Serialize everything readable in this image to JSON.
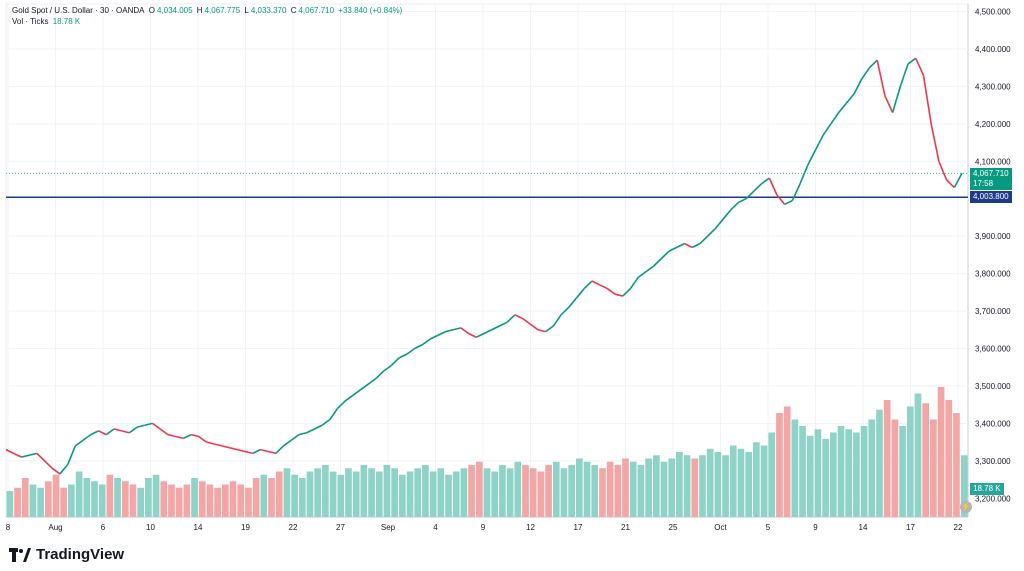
{
  "header": {
    "symbol": "Gold Spot / U.S. Dollar · 30 · OANDA",
    "open_label": "O",
    "open": "4,034.005",
    "high_label": "H",
    "high": "4,067.775",
    "low_label": "L",
    "low": "4,033.370",
    "close_label": "C",
    "close": "4,067.710",
    "change": "+33.840 (+0.84%)",
    "vol_label": "Vol · Ticks",
    "vol_value": "18.78 K"
  },
  "price_tag": {
    "value": "4,067.710",
    "countdown": "17:58"
  },
  "line_tag": {
    "value": "4,003.800"
  },
  "volume_tag": "18.78 K",
  "brand": "TradingView",
  "colors": {
    "up": "#089981",
    "down": "#f23645",
    "line": "#1e3a8a",
    "vol_up": "#8fd3c8",
    "vol_down": "#f4a6a6"
  },
  "chart_data": {
    "type": "line",
    "title": "",
    "xlabel": "",
    "ylabel": "",
    "ylim": [
      3150,
      4520
    ],
    "y_ticks": [
      3200,
      3300,
      3400,
      3500,
      3600,
      3700,
      3800,
      3900,
      4000,
      4100,
      4200,
      4300,
      4400,
      4500
    ],
    "y_tick_labels": [
      "3,200.000",
      "3,300.000",
      "3,400.000",
      "3,500.000",
      "3,600.000",
      "3,700.000",
      "3,800.000",
      "3,900.000",
      "4,000.000",
      "4,100.000",
      "4,200.000",
      "4,300.000",
      "4,400.000",
      "4,500.000"
    ],
    "x_ticks": [
      "8",
      "Aug",
      "6",
      "10",
      "14",
      "19",
      "22",
      "27",
      "Sep",
      "4",
      "9",
      "12",
      "17",
      "21",
      "25",
      "Oct",
      "5",
      "9",
      "14",
      "17",
      "22"
    ],
    "horizontal_line": 4003.8,
    "series": [
      {
        "values": [
          3330,
          3320,
          3310,
          3315,
          3320,
          3300,
          3280,
          3265,
          3290,
          3340,
          3355,
          3370,
          3380,
          3370,
          3385,
          3380,
          3375,
          3390,
          3395,
          3400,
          3385,
          3370,
          3365,
          3360,
          3370,
          3365,
          3350,
          3345,
          3340,
          3335,
          3330,
          3325,
          3320,
          3330,
          3325,
          3320,
          3340,
          3355,
          3370,
          3375,
          3385,
          3395,
          3410,
          3440,
          3460,
          3475,
          3490,
          3505,
          3520,
          3540,
          3555,
          3575,
          3585,
          3600,
          3610,
          3625,
          3635,
          3645,
          3650,
          3655,
          3640,
          3630,
          3640,
          3650,
          3660,
          3670,
          3690,
          3680,
          3665,
          3650,
          3645,
          3660,
          3690,
          3710,
          3735,
          3760,
          3780,
          3770,
          3760,
          3745,
          3740,
          3760,
          3790,
          3805,
          3820,
          3840,
          3860,
          3870,
          3880,
          3870,
          3880,
          3900,
          3920,
          3945,
          3970,
          3990,
          4000,
          4020,
          4040,
          4055,
          4010,
          3985,
          3995,
          4040,
          4090,
          4130,
          4170,
          4200,
          4230,
          4255,
          4280,
          4320,
          4350,
          4370,
          4275,
          4230,
          4300,
          4360,
          4375,
          4330,
          4200,
          4100,
          4050,
          4030,
          4068
        ]
      }
    ],
    "volume": {
      "values": [
        8,
        9,
        12,
        10,
        9,
        11,
        13,
        9,
        10,
        14,
        12,
        11,
        10,
        13,
        12,
        11,
        10,
        9,
        12,
        13,
        11,
        10,
        9,
        10,
        12,
        11,
        10,
        9,
        10,
        11,
        10,
        9,
        12,
        13,
        12,
        14,
        15,
        13,
        12,
        14,
        15,
        16,
        14,
        13,
        15,
        14,
        16,
        15,
        14,
        16,
        15,
        13,
        14,
        15,
        16,
        14,
        15,
        13,
        14,
        15,
        16,
        17,
        15,
        14,
        16,
        15,
        17,
        16,
        15,
        14,
        16,
        17,
        15,
        16,
        18,
        17,
        16,
        15,
        17,
        16,
        18,
        17,
        16,
        18,
        19,
        17,
        18,
        20,
        19,
        18,
        19,
        21,
        20,
        19,
        22,
        21,
        20,
        23,
        22,
        26,
        32,
        34,
        30,
        28,
        25,
        27,
        24,
        26,
        28,
        27,
        26,
        28,
        30,
        33,
        36,
        30,
        28,
        34,
        38,
        35,
        30,
        40,
        36,
        32,
        19
      ]
    }
  }
}
